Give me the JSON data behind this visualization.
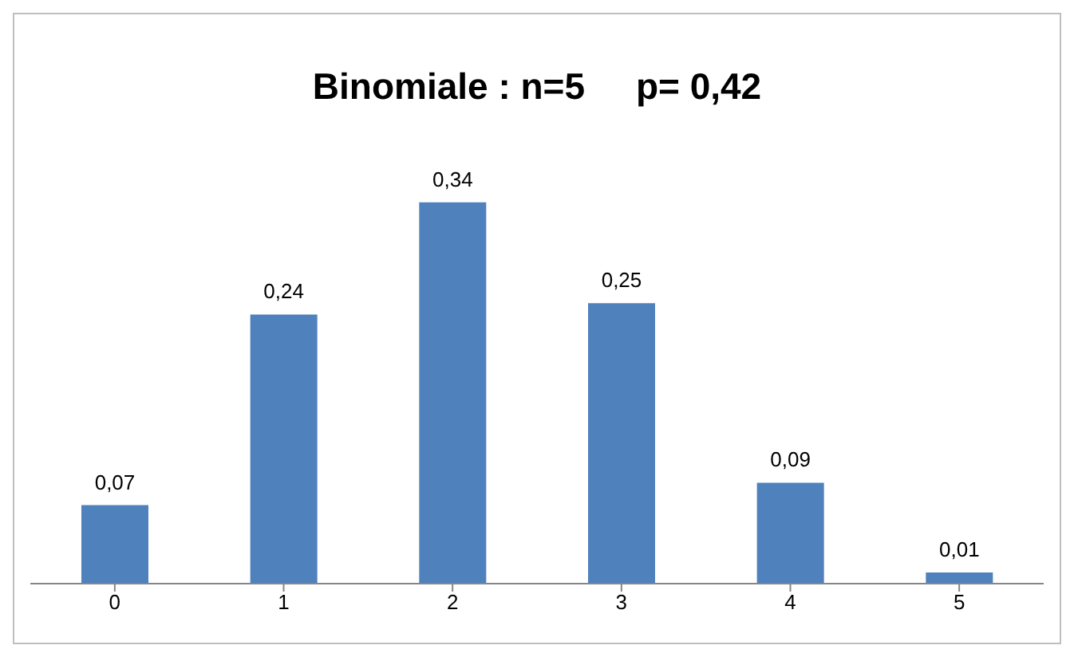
{
  "chart_data": {
    "type": "bar",
    "title": "Binomiale : n=5     p= 0,42",
    "categories": [
      "0",
      "1",
      "2",
      "3",
      "4",
      "5"
    ],
    "values": [
      0.07,
      0.24,
      0.34,
      0.25,
      0.09,
      0.01
    ],
    "value_labels": [
      "0,07",
      "0,24",
      "0,34",
      "0,25",
      "0,09",
      "0,01"
    ],
    "color": "#4f81bd",
    "grid": false,
    "legend": false
  }
}
